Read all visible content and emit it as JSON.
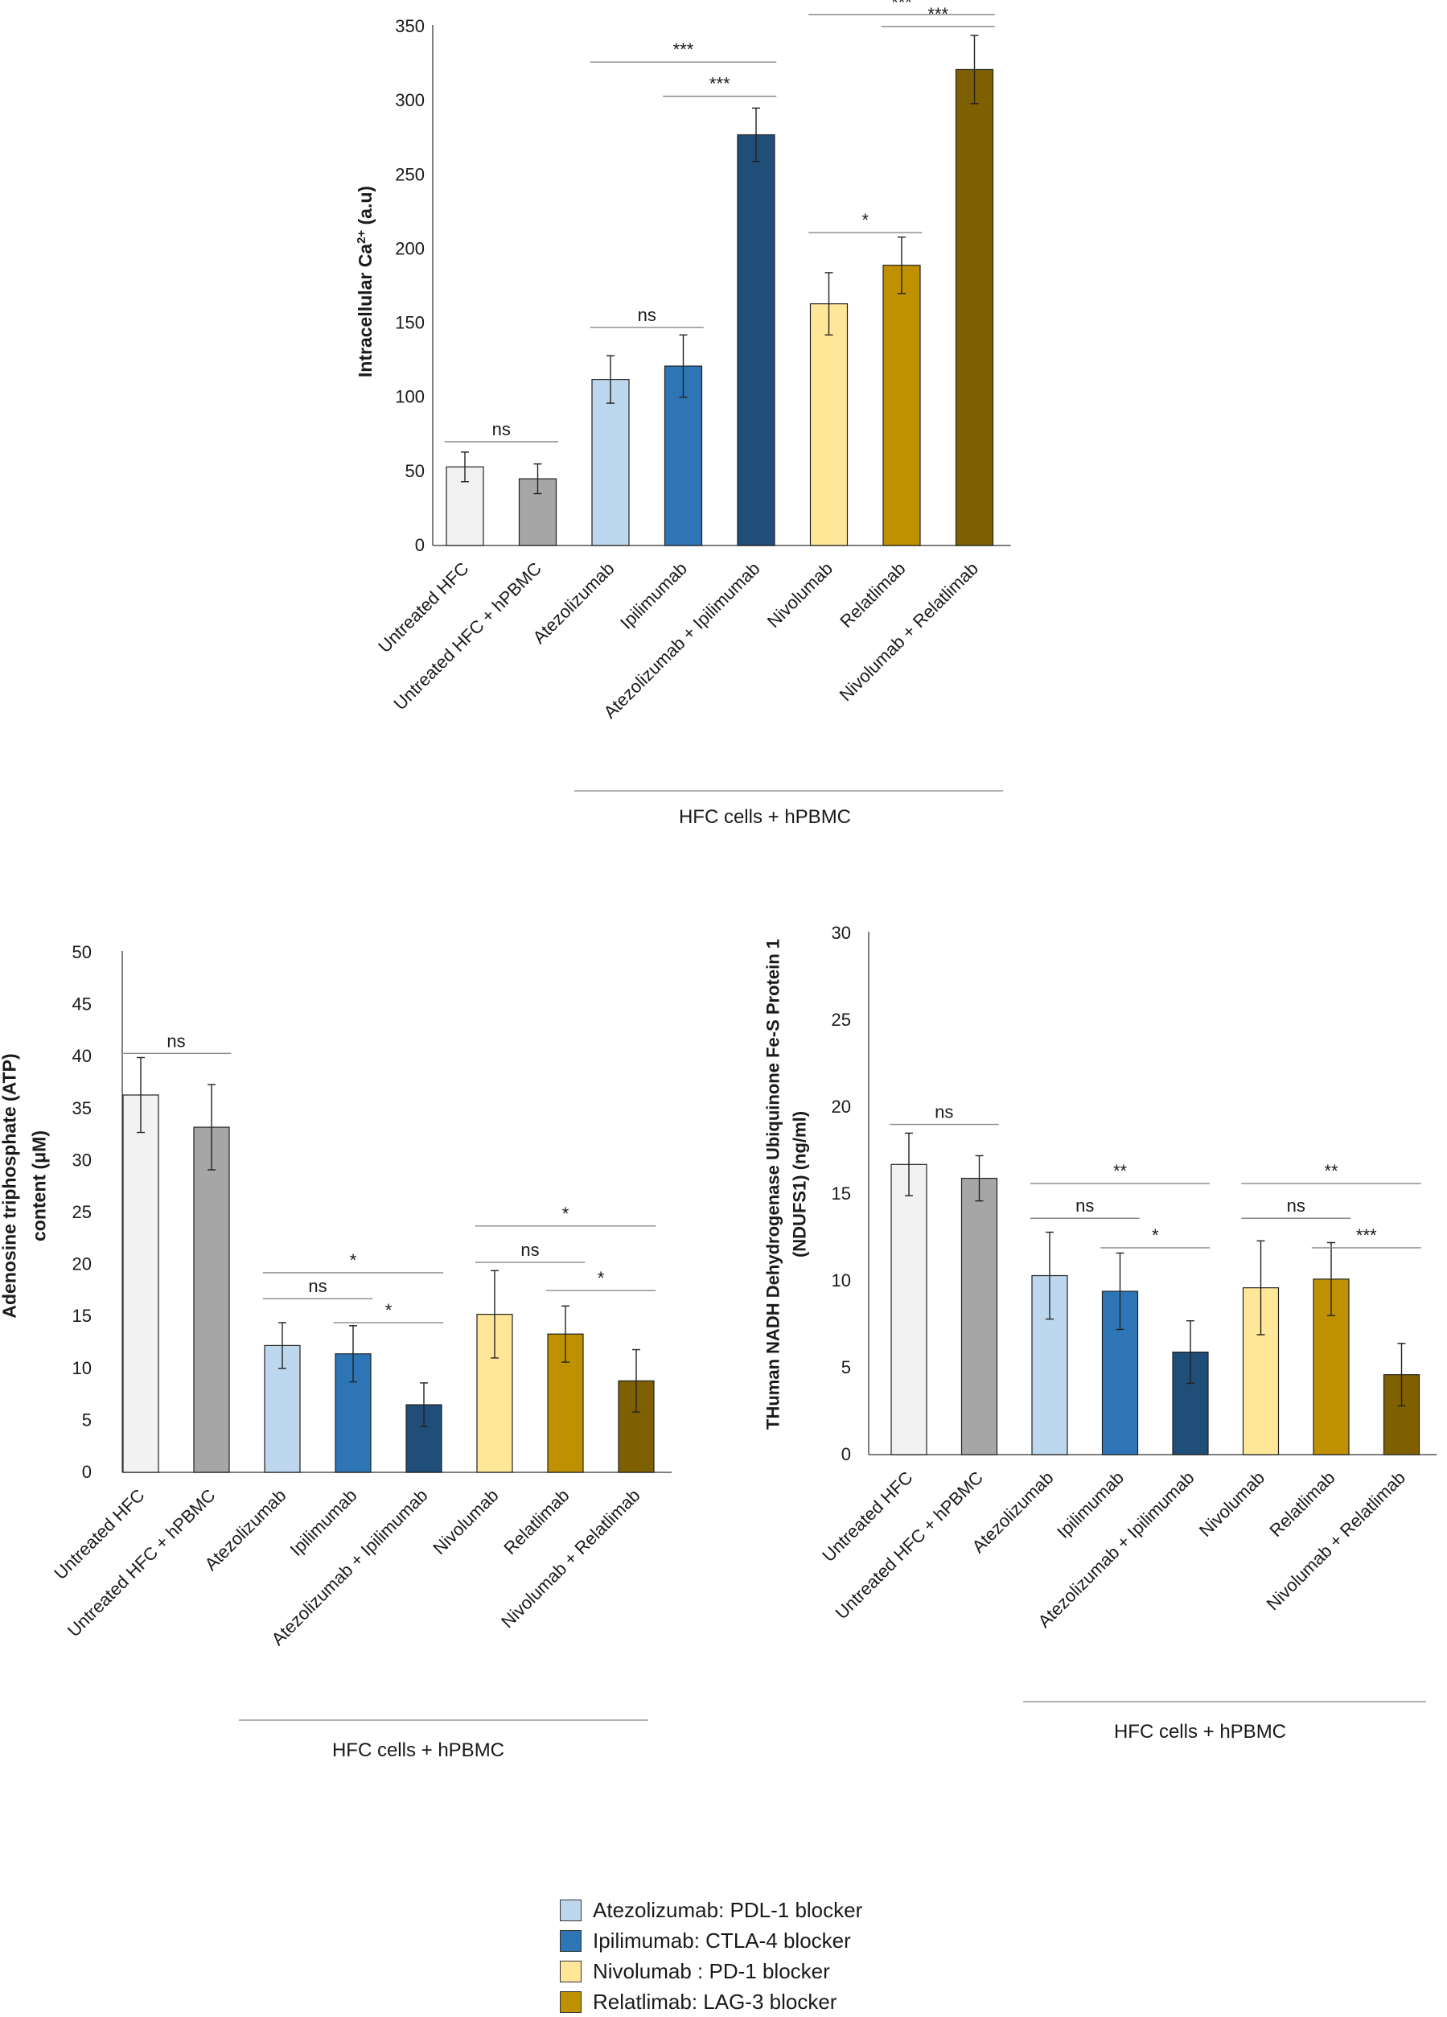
{
  "chart_data": [
    {
      "type": "bar",
      "title": "",
      "ylabel": "Intracellular Ca²⁺ (a.u)",
      "ylabel_parts": {
        "pre": "Intracellular Ca",
        "sup": "2+",
        "post": " (a.u)"
      },
      "xlabel": "",
      "group_label": "HFC cells + hPBMC",
      "ylim": [
        0,
        350
      ],
      "ticks": [
        0,
        50,
        100,
        150,
        200,
        250,
        300,
        350
      ],
      "categories": [
        "Untreated  HFC",
        "Untreated  HFC + hPBMC",
        "Atezolizumab",
        "Ipilimumab",
        "Atezolizumab + Ipilimumab",
        "Nivolumab",
        "Relatlimab",
        "Nivolumab + Relatlimab"
      ],
      "values": [
        53,
        45,
        112,
        121,
        277,
        163,
        189,
        321
      ],
      "errors": [
        10,
        10,
        16,
        21,
        18,
        21,
        19,
        23
      ],
      "colors": [
        "#f2f2f2",
        "#a6a6a6",
        "#bdd7ee",
        "#2e75b6",
        "#1f4e79",
        "#ffe699",
        "#bf9000",
        "#7f6000"
      ],
      "significance": [
        {
          "from": 0,
          "to": 1,
          "label": "ns",
          "y": 70
        },
        {
          "from": 2,
          "to": 3,
          "label": "ns",
          "y": 147
        },
        {
          "from": 3,
          "to": 4,
          "label": "***",
          "y": 303
        },
        {
          "from": 2,
          "to": 4,
          "label": "***",
          "y": 326
        },
        {
          "from": 5,
          "to": 6,
          "label": "*",
          "y": 211
        },
        {
          "from": 6,
          "to": 7,
          "label": "***",
          "y": 350
        },
        {
          "from": 5,
          "to": 7,
          "label": "***",
          "y": 358
        }
      ]
    },
    {
      "type": "bar",
      "title": "",
      "ylabel": "Adenosine triphosphate (ATP) content (μM)",
      "ylabel_lines": [
        "Adenosine triphosphate (ATP)",
        "content (μM)"
      ],
      "xlabel": "",
      "group_label": "HFC cells + hPBMC",
      "ylim": [
        0,
        50
      ],
      "ticks": [
        0,
        5,
        10,
        15,
        20,
        25,
        30,
        35,
        40,
        45,
        50
      ],
      "categories": [
        "Untreated  HFC",
        "Untreated  HFC + hPBMC",
        "Atezolizumab",
        "Ipilimumab",
        "Atezolizumab + Ipilimumab",
        "Nivolumab",
        "Relatlimab",
        "Nivolumab + Relatlimab"
      ],
      "values": [
        36.3,
        33.2,
        12.2,
        11.4,
        6.5,
        15.2,
        13.3,
        8.8
      ],
      "errors": [
        3.6,
        4.1,
        2.2,
        2.7,
        2.1,
        4.2,
        2.7,
        3.0
      ],
      "colors": [
        "#f2f2f2",
        "#a6a6a6",
        "#bdd7ee",
        "#2e75b6",
        "#1f4e79",
        "#ffe699",
        "#bf9000",
        "#7f6000"
      ],
      "significance": [
        {
          "from": 0,
          "to": 1,
          "label": "ns",
          "y": 40.3
        },
        {
          "from": 2,
          "to": 3,
          "label": "ns",
          "y": 16.7
        },
        {
          "from": 3,
          "to": 4,
          "label": "*",
          "y": 14.4
        },
        {
          "from": 2,
          "to": 4,
          "label": "*",
          "y": 19.2
        },
        {
          "from": 5,
          "to": 6,
          "label": "ns",
          "y": 20.2
        },
        {
          "from": 6,
          "to": 7,
          "label": "*",
          "y": 17.5
        },
        {
          "from": 5,
          "to": 7,
          "label": "*",
          "y": 23.7
        }
      ]
    },
    {
      "type": "bar",
      "title": "",
      "ylabel": "THuman NADH Dehydrogenase Ubiquinone Fe-S Protein 1 (NDUFS1)  (ng/ml)",
      "ylabel_lines": [
        "THuman NADH Dehydrogenase Ubiquinone Fe-S Protein 1",
        "(NDUFS1)  (ng/ml)"
      ],
      "xlabel": "",
      "group_label": "HFC cells + hPBMC",
      "ylim": [
        0,
        30
      ],
      "ticks": [
        0,
        5,
        10,
        15,
        20,
        25,
        30
      ],
      "categories": [
        "Untreated  HFC",
        "Untreated  HFC + hPBMC",
        "Atezolizumab",
        "Ipilimumab",
        "Atezolizumab + Ipilimumab",
        "Nivolumab",
        "Relatlimab",
        "Nivolumab + Relatlimab"
      ],
      "values": [
        16.7,
        15.9,
        10.3,
        9.4,
        5.9,
        9.6,
        10.1,
        4.6
      ],
      "errors": [
        1.8,
        1.3,
        2.5,
        2.2,
        1.8,
        2.7,
        2.1,
        1.8
      ],
      "colors": [
        "#f2f2f2",
        "#a6a6a6",
        "#bdd7ee",
        "#2e75b6",
        "#1f4e79",
        "#ffe699",
        "#bf9000",
        "#7f6000"
      ],
      "significance": [
        {
          "from": 0,
          "to": 1,
          "label": "ns",
          "y": 19.0
        },
        {
          "from": 2,
          "to": 3,
          "label": "ns",
          "y": 13.6
        },
        {
          "from": 3,
          "to": 4,
          "label": "*",
          "y": 11.9
        },
        {
          "from": 2,
          "to": 4,
          "label": "**",
          "y": 15.6
        },
        {
          "from": 5,
          "to": 6,
          "label": "ns",
          "y": 13.6
        },
        {
          "from": 6,
          "to": 7,
          "label": "***",
          "y": 11.9
        },
        {
          "from": 5,
          "to": 7,
          "label": "**",
          "y": 15.6
        }
      ]
    }
  ],
  "legend": {
    "items": [
      {
        "label": "Atezolizumab:  PDL-1 blocker",
        "color": "#bdd7ee"
      },
      {
        "label": "Ipilimumab: CTLA-4 blocker",
        "color": "#2e75b6"
      },
      {
        "label": "Nivolumab : PD-1 blocker",
        "color": "#ffe699"
      },
      {
        "label": "Relatlimab: LAG-3 blocker",
        "color": "#bf9000"
      }
    ]
  }
}
